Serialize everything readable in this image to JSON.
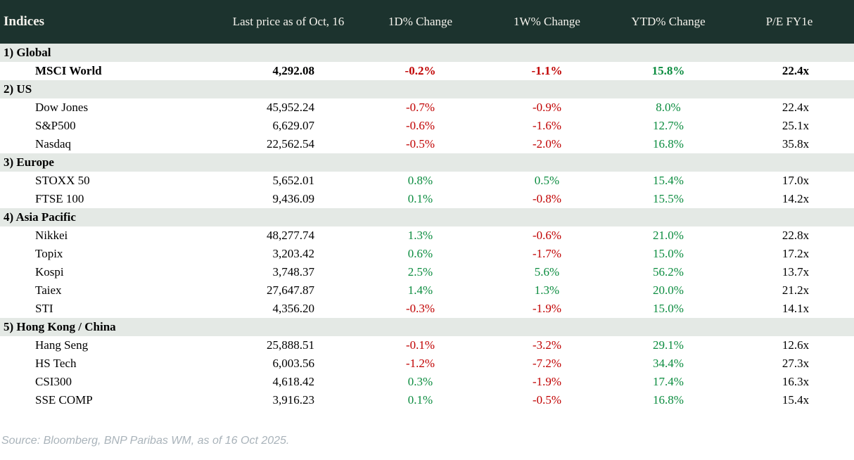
{
  "colors": {
    "header_bg": "#1c332e",
    "section_bg": "#e4e9e5",
    "positive": "#0b8c3f",
    "negative": "#c00000"
  },
  "table": {
    "columns": {
      "name": "Indices",
      "price": "Last price as of Oct, 16",
      "d1": "1D% Change",
      "w1": "1W% Change",
      "ytd": "YTD% Change",
      "pe": "P/E FY1e"
    },
    "sections": [
      {
        "label": "1) Global",
        "rows": [
          {
            "name": "MSCI World",
            "price": "4,292.08",
            "d1": "-0.2%",
            "w1": "-1.1%",
            "ytd": "15.8%",
            "pe": "22.4x",
            "bold": true
          }
        ]
      },
      {
        "label": "2) US",
        "rows": [
          {
            "name": "Dow Jones",
            "price": "45,952.24",
            "d1": "-0.7%",
            "w1": "-0.9%",
            "ytd": "8.0%",
            "pe": "22.4x",
            "bold": false
          },
          {
            "name": "S&P500",
            "price": "6,629.07",
            "d1": "-0.6%",
            "w1": "-1.6%",
            "ytd": "12.7%",
            "pe": "25.1x",
            "bold": false
          },
          {
            "name": "Nasdaq",
            "price": "22,562.54",
            "d1": "-0.5%",
            "w1": "-2.0%",
            "ytd": "16.8%",
            "pe": "35.8x",
            "bold": false
          }
        ]
      },
      {
        "label": "3) Europe",
        "rows": [
          {
            "name": "STOXX 50",
            "price": "5,652.01",
            "d1": "0.8%",
            "w1": "0.5%",
            "ytd": "15.4%",
            "pe": "17.0x",
            "bold": false
          },
          {
            "name": "FTSE 100",
            "price": "9,436.09",
            "d1": "0.1%",
            "w1": "-0.8%",
            "ytd": "15.5%",
            "pe": "14.2x",
            "bold": false
          }
        ]
      },
      {
        "label": "4) Asia Pacific",
        "rows": [
          {
            "name": "Nikkei",
            "price": "48,277.74",
            "d1": "1.3%",
            "w1": "-0.6%",
            "ytd": "21.0%",
            "pe": "22.8x",
            "bold": false
          },
          {
            "name": "Topix",
            "price": "3,203.42",
            "d1": "0.6%",
            "w1": "-1.7%",
            "ytd": "15.0%",
            "pe": "17.2x",
            "bold": false
          },
          {
            "name": "Kospi",
            "price": "3,748.37",
            "d1": "2.5%",
            "w1": "5.6%",
            "ytd": "56.2%",
            "pe": "13.7x",
            "bold": false
          },
          {
            "name": "Taiex",
            "price": "27,647.87",
            "d1": "1.4%",
            "w1": "1.3%",
            "ytd": "20.0%",
            "pe": "21.2x",
            "bold": false
          },
          {
            "name": "STI",
            "price": "4,356.20",
            "d1": "-0.3%",
            "w1": "-1.9%",
            "ytd": "15.0%",
            "pe": "14.1x",
            "bold": false
          }
        ]
      },
      {
        "label": "5) Hong Kong / China",
        "rows": [
          {
            "name": "Hang Seng",
            "price": "25,888.51",
            "d1": "-0.1%",
            "w1": "-3.2%",
            "ytd": "29.1%",
            "pe": "12.6x",
            "bold": false
          },
          {
            "name": "HS Tech",
            "price": "6,003.56",
            "d1": "-1.2%",
            "w1": "-7.2%",
            "ytd": "34.4%",
            "pe": "27.3x",
            "bold": false
          },
          {
            "name": "CSI300",
            "price": "4,618.42",
            "d1": "0.3%",
            "w1": "-1.9%",
            "ytd": "17.4%",
            "pe": "16.3x",
            "bold": false
          },
          {
            "name": "SSE COMP",
            "price": "3,916.23",
            "d1": "0.1%",
            "w1": "-0.5%",
            "ytd": "16.8%",
            "pe": "15.4x",
            "bold": false
          }
        ]
      }
    ]
  },
  "footer": {
    "source": "Source: Bloomberg, BNP Paribas WM, as of 16 Oct 2025."
  }
}
